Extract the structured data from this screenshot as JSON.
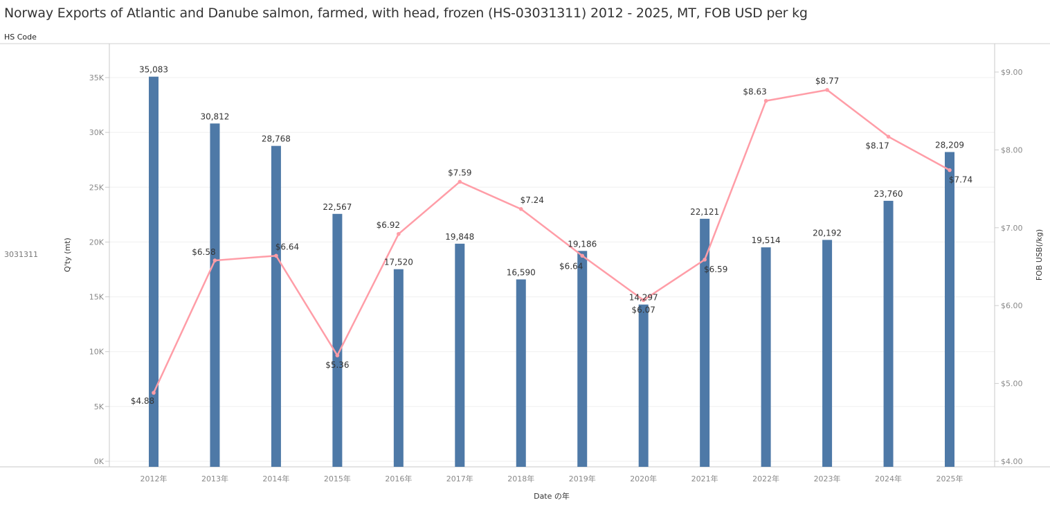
{
  "header": {
    "hs_code_label": "HS Code",
    "hs_code_value": "3031311"
  },
  "chart_data": {
    "type": "bar+line",
    "title": "Norway Exports of Atlantic and Danube salmon, farmed, with head, frozen (HS-03031311) 2012 - 2025, MT, FOB USD per kg",
    "xlabel": "Date の年",
    "ylabel": "Q'ty (mt)",
    "y2label": "FOB USB(/kg)",
    "categories": [
      "2012年",
      "2013年",
      "2014年",
      "2015年",
      "2016年",
      "2017年",
      "2018年",
      "2019年",
      "2020年",
      "2021年",
      "2022年",
      "2023年",
      "2024年",
      "2025年"
    ],
    "series": [
      {
        "name": "Q'ty (mt)",
        "type": "bar",
        "color": "#4e79a7",
        "axis": "left",
        "values": [
          35083,
          30812,
          28768,
          22567,
          17520,
          19848,
          16590,
          19186,
          14297,
          22121,
          19514,
          20192,
          23760,
          28209
        ],
        "labels": [
          "35,083",
          "30,812",
          "28,768",
          "22,567",
          "17,520",
          "19,848",
          "16,590",
          "19,186",
          "14,297",
          "22,121",
          "19,514",
          "20,192",
          "23,760",
          "28,209"
        ]
      },
      {
        "name": "FOB USB(/kg)",
        "type": "line",
        "color": "#ff9da7",
        "axis": "right",
        "values": [
          4.88,
          6.58,
          6.64,
          5.36,
          6.92,
          7.59,
          7.24,
          6.64,
          6.07,
          6.59,
          8.63,
          8.77,
          8.17,
          7.74
        ],
        "labels": [
          "$4.88",
          "$6.58",
          "$6.64",
          "$5.36",
          "$6.92",
          "$7.59",
          "$7.24",
          "$6.64",
          "$6.07",
          "$6.59",
          "$8.63",
          "$8.77",
          "$8.17",
          "$7.74"
        ]
      }
    ],
    "ylim": [
      0,
      35000
    ],
    "y_ticks": [
      {
        "v": 0,
        "t": "0K"
      },
      {
        "v": 5000,
        "t": "5K"
      },
      {
        "v": 10000,
        "t": "10K"
      },
      {
        "v": 15000,
        "t": "15K"
      },
      {
        "v": 20000,
        "t": "20K"
      },
      {
        "v": 25000,
        "t": "25K"
      },
      {
        "v": 30000,
        "t": "30K"
      },
      {
        "v": 35000,
        "t": "35K"
      }
    ],
    "y2lim": [
      4,
      9
    ],
    "y2_ticks": [
      {
        "v": 4,
        "t": "$4.00"
      },
      {
        "v": 5,
        "t": "$5.00"
      },
      {
        "v": 6,
        "t": "$6.00"
      },
      {
        "v": 7,
        "t": "$7.00"
      },
      {
        "v": 8,
        "t": "$8.00"
      },
      {
        "v": 9,
        "t": "$9.00"
      }
    ],
    "grid": true
  }
}
